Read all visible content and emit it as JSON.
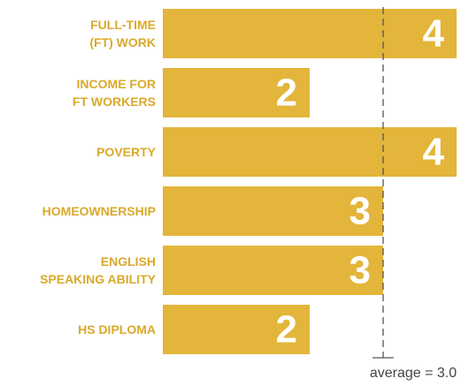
{
  "chart_data": {
    "type": "bar",
    "orientation": "horizontal",
    "categories": [
      "FULL-TIME\n(FT) WORK",
      "INCOME FOR\nFT WORKERS",
      "POVERTY",
      "HOMEOWNERSHIP",
      "ENGLISH\nSPEAKING ABILITY",
      "HS DIPLOMA"
    ],
    "values": [
      4,
      2,
      4,
      3,
      3,
      2
    ],
    "color": "#e3b53b",
    "xlim": [
      0,
      4
    ],
    "average": {
      "value": 3,
      "label": "average = 3.0"
    }
  }
}
